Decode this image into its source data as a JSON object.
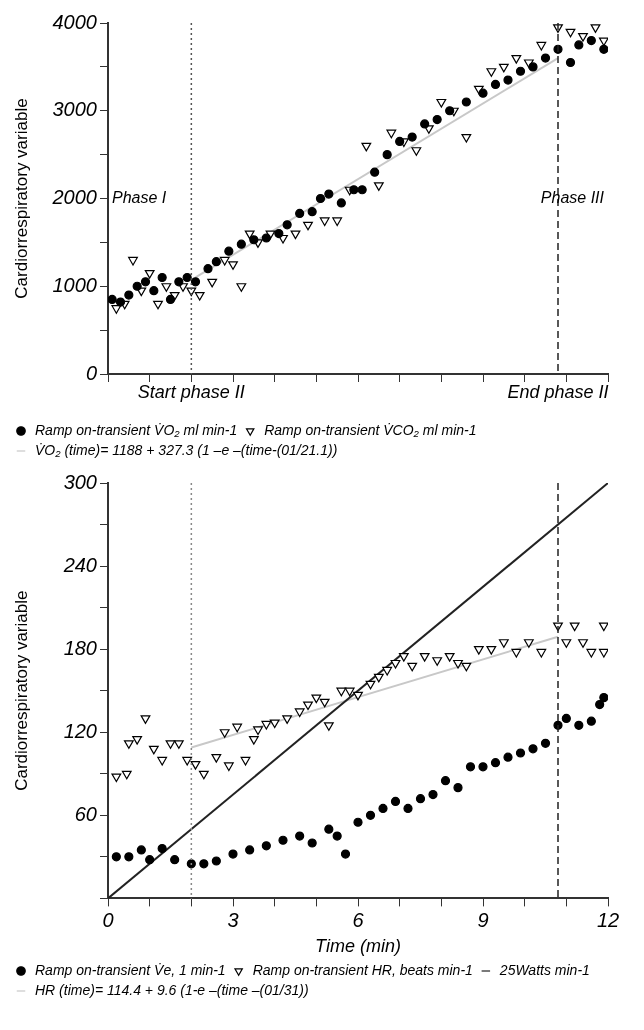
{
  "chart_data": [
    {
      "type": "scatter",
      "ylabel": "Cardiorrespiratory variable",
      "xlim": [
        0,
        12
      ],
      "ylim": [
        0,
        4000
      ],
      "xticks": [
        {
          "value": 0,
          "label": null
        },
        {
          "value": 1,
          "label": null
        },
        {
          "value": 2,
          "label": null
        },
        {
          "value": 3,
          "label": null
        },
        {
          "value": 4,
          "label": null
        },
        {
          "value": 5,
          "label": null
        },
        {
          "value": 6,
          "label": null
        },
        {
          "value": 7,
          "label": null
        },
        {
          "value": 8,
          "label": null
        },
        {
          "value": 9,
          "label": null
        },
        {
          "value": 10,
          "label": null
        },
        {
          "value": 11,
          "label": null
        },
        {
          "value": 12,
          "label": null
        }
      ],
      "yticks": [
        0,
        {
          "value": 500,
          "label": null
        },
        1000,
        {
          "value": 1500,
          "label": null
        },
        2000,
        {
          "value": 2500,
          "label": null
        },
        3000,
        {
          "value": 3500,
          "label": null
        },
        4000
      ],
      "tick_labels": "y",
      "grid": false,
      "legend": "bottom",
      "ref_lines": [
        {
          "axis": "x",
          "value": 2,
          "label": "Start phase II",
          "line_style": "dotted",
          "color": "#555555"
        },
        {
          "axis": "x",
          "value": 10.8,
          "label": "End phase II",
          "line_style": "dashed",
          "color": "#222222"
        }
      ],
      "annotations": [
        "Phase I",
        "Phase III"
      ],
      "series": [
        {
          "name": "Ramp on-transient V̇O₂ ml min-1",
          "color": "#000000",
          "marker": "circle",
          "x": [
            0.1,
            0.3,
            0.5,
            0.7,
            0.9,
            1.1,
            1.3,
            1.5,
            1.7,
            1.9,
            2.1,
            2.4,
            2.6,
            2.9,
            3.2,
            3.5,
            3.8,
            4.1,
            4.3,
            4.6,
            4.9,
            5.1,
            5.3,
            5.6,
            5.9,
            6.1,
            6.4,
            6.7,
            7.0,
            7.3,
            7.6,
            7.9,
            8.2,
            8.6,
            9.0,
            9.3,
            9.6,
            9.9,
            10.2,
            10.5,
            10.8,
            11.1,
            11.3,
            11.6,
            11.9
          ],
          "values": [
            850,
            820,
            900,
            1000,
            1050,
            950,
            1100,
            850,
            1050,
            1100,
            1050,
            1200,
            1280,
            1400,
            1480,
            1530,
            1550,
            1600,
            1700,
            1830,
            1850,
            2000,
            2050,
            1950,
            2100,
            2100,
            2300,
            2500,
            2650,
            2700,
            2850,
            2900,
            3000,
            3100,
            3200,
            3300,
            3350,
            3450,
            3500,
            3600,
            3700,
            3550,
            3750,
            3800,
            3700
          ]
        },
        {
          "name": "Ramp on-transient V̇CO₂ ml min-1",
          "color": "#000000",
          "marker": "triangle",
          "x": [
            0.2,
            0.4,
            0.6,
            0.8,
            1.0,
            1.2,
            1.4,
            1.6,
            1.8,
            2.0,
            2.2,
            2.5,
            2.8,
            3.0,
            3.2,
            3.4,
            3.6,
            3.9,
            4.2,
            4.5,
            4.8,
            5.2,
            5.5,
            5.8,
            6.2,
            6.5,
            6.8,
            7.1,
            7.4,
            7.7,
            8.0,
            8.3,
            8.6,
            8.9,
            9.2,
            9.5,
            9.8,
            10.1,
            10.4,
            10.8,
            11.1,
            11.4,
            11.7,
            11.9
          ],
          "values": [
            750,
            800,
            1300,
            950,
            1150,
            800,
            1000,
            900,
            1000,
            950,
            900,
            1050,
            1300,
            1250,
            1000,
            1600,
            1500,
            1600,
            1550,
            1600,
            1700,
            1750,
            1750,
            2100,
            2600,
            2150,
            2750,
            2650,
            2550,
            2800,
            3100,
            3000,
            2700,
            3250,
            3450,
            3500,
            3600,
            3550,
            3750,
            3950,
            3900,
            3850,
            3950,
            3800
          ]
        },
        {
          "name": "V̇O₂ (time)= 1188 + 327.3 (1 –e –(time-(01/21.1))",
          "type": "line",
          "color": "#c8c8c8",
          "marker": "none",
          "x": [
            2.1,
            10.8
          ],
          "values": [
            1100,
            3600
          ]
        }
      ]
    },
    {
      "type": "scatter",
      "xlabel": "Time (min)",
      "ylabel": "Cardiorrespiratory variable",
      "xlim": [
        0,
        12
      ],
      "ylim": [
        0,
        300
      ],
      "xticks": [
        0,
        {
          "value": 1,
          "label": null
        },
        {
          "value": 2,
          "label": null
        },
        3,
        {
          "value": 4,
          "label": null
        },
        {
          "value": 5,
          "label": null
        },
        6,
        {
          "value": 7,
          "label": null
        },
        {
          "value": 8,
          "label": null
        },
        9,
        {
          "value": 10,
          "label": null
        },
        {
          "value": 11,
          "label": null
        },
        12
      ],
      "yticks": [
        {
          "value": 0,
          "label": null
        },
        {
          "value": 30,
          "label": null
        },
        60,
        {
          "value": 90,
          "label": null
        },
        120,
        {
          "value": 150,
          "label": null
        },
        180,
        {
          "value": 210,
          "label": null
        },
        240,
        {
          "value": 270,
          "label": null
        },
        300
      ],
      "grid": false,
      "legend": "bottom",
      "ref_lines": [
        {
          "axis": "x",
          "value": 2,
          "line_style": "dotted",
          "color": "#888888"
        },
        {
          "axis": "x",
          "value": 10.8,
          "line_style": "dashed",
          "color": "#222222"
        }
      ],
      "series": [
        {
          "name": "Ramp on-transient V̇e, 1 min-1",
          "color": "#000000",
          "marker": "circle",
          "x": [
            0.2,
            0.5,
            0.8,
            1.0,
            1.3,
            1.6,
            2.0,
            2.3,
            2.6,
            3.0,
            3.4,
            3.8,
            4.2,
            4.6,
            4.9,
            5.3,
            5.5,
            5.7,
            6.0,
            6.3,
            6.6,
            6.9,
            7.2,
            7.5,
            7.8,
            8.1,
            8.4,
            8.7,
            9.0,
            9.3,
            9.6,
            9.9,
            10.2,
            10.5,
            10.8,
            11.0,
            11.3,
            11.6,
            11.8,
            11.9
          ],
          "values": [
            30,
            30,
            35,
            28,
            36,
            28,
            25,
            25,
            27,
            32,
            35,
            38,
            42,
            45,
            40,
            50,
            45,
            32,
            55,
            60,
            65,
            70,
            65,
            72,
            75,
            85,
            80,
            95,
            95,
            98,
            102,
            105,
            108,
            112,
            125,
            130,
            125,
            128,
            140,
            145
          ]
        },
        {
          "name": "Ramp on-transient HR, beats min-1",
          "color": "#000000",
          "marker": "triangle",
          "x": [
            0.2,
            0.45,
            0.5,
            0.7,
            0.9,
            1.1,
            1.3,
            1.5,
            1.7,
            1.9,
            2.1,
            2.3,
            2.6,
            2.8,
            2.9,
            3.1,
            3.3,
            3.5,
            3.6,
            3.8,
            4.0,
            4.3,
            4.6,
            4.8,
            5.0,
            5.2,
            5.3,
            5.6,
            5.8,
            6.0,
            6.3,
            6.5,
            6.7,
            6.9,
            7.1,
            7.3,
            7.6,
            7.9,
            8.2,
            8.4,
            8.6,
            8.9,
            9.2,
            9.5,
            9.8,
            10.1,
            10.4,
            10.8,
            11.0,
            11.2,
            11.4,
            11.6,
            11.9,
            11.9
          ],
          "values": [
            88,
            90,
            112,
            115,
            130,
            108,
            100,
            112,
            112,
            100,
            97,
            90,
            102,
            120,
            96,
            124,
            100,
            115,
            122,
            126,
            127,
            130,
            135,
            140,
            145,
            142,
            125,
            150,
            150,
            147,
            155,
            160,
            165,
            170,
            175,
            168,
            175,
            172,
            175,
            170,
            168,
            180,
            180,
            185,
            178,
            185,
            178,
            197,
            185,
            197,
            185,
            178,
            197,
            178
          ]
        },
        {
          "name": "25Watts min-1",
          "type": "line",
          "color": "#222222",
          "marker": "none",
          "x": [
            0,
            12
          ],
          "values": [
            0,
            300
          ]
        },
        {
          "name": "HR (time)= 114.4 + 9.6 (1-e –(time –(01/31))",
          "type": "line",
          "color": "#c8c8c8",
          "marker": "none",
          "x": [
            2,
            10.8
          ],
          "values": [
            109,
            189
          ]
        }
      ]
    }
  ]
}
